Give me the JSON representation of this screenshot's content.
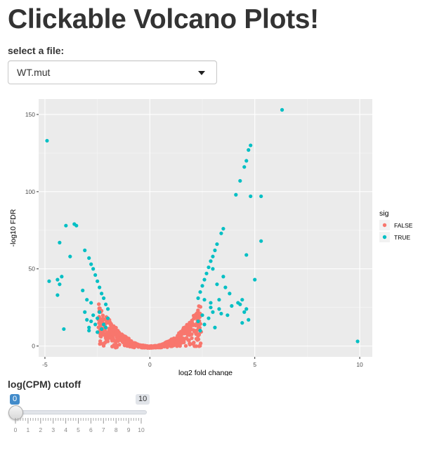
{
  "page": {
    "title": "Clickable Volcano Plots!"
  },
  "file_select": {
    "label": "select a file:",
    "value": "WT.mut"
  },
  "chart_data": {
    "type": "scatter",
    "xlabel": "log2 fold change",
    "ylabel": "-log10 FDR",
    "xlim": [
      -5.3,
      10.6
    ],
    "ylim": [
      -7,
      160
    ],
    "x_ticks": [
      -5,
      0,
      5,
      10
    ],
    "y_ticks": [
      0,
      50,
      100,
      150
    ],
    "x_tick_labels": [
      "-5",
      "0",
      "5",
      "10"
    ],
    "y_tick_labels": [
      "0",
      "50",
      "100",
      "150"
    ],
    "grid": true,
    "legend": {
      "title": "sig",
      "position": "right",
      "entries": [
        {
          "label": "FALSE",
          "color": "#F8766D"
        },
        {
          "label": "TRUE",
          "color": "#00BFC4"
        }
      ]
    },
    "series": [
      {
        "name": "TRUE",
        "color": "#00BFC4",
        "points": [
          [
            6.3,
            153
          ],
          [
            -4.9,
            133
          ],
          [
            4.8,
            130
          ],
          [
            4.7,
            127
          ],
          [
            4.6,
            120
          ],
          [
            4.5,
            116
          ],
          [
            4.3,
            107
          ],
          [
            4.8,
            97
          ],
          [
            5.3,
            97
          ],
          [
            4.1,
            98
          ],
          [
            -3.6,
            79
          ],
          [
            -3.5,
            78
          ],
          [
            -4,
            78
          ],
          [
            3.5,
            76
          ],
          [
            3.4,
            73
          ],
          [
            -4.3,
            67
          ],
          [
            5.3,
            68
          ],
          [
            -3.8,
            58
          ],
          [
            -3.1,
            62
          ],
          [
            4.6,
            59
          ],
          [
            -4.8,
            42
          ],
          [
            -4.4,
            43
          ],
          [
            -4.3,
            40
          ],
          [
            -4.2,
            45
          ],
          [
            -4.4,
            33
          ],
          [
            -4.1,
            11
          ],
          [
            5.0,
            43
          ],
          [
            -3.2,
            36
          ],
          [
            4.2,
            28
          ],
          [
            9.9,
            3
          ],
          [
            -2.9,
            57
          ],
          [
            -2.8,
            53
          ],
          [
            -2.7,
            50
          ],
          [
            -2.6,
            46
          ],
          [
            -2.5,
            42
          ],
          [
            -2.4,
            38
          ],
          [
            -2.3,
            34
          ],
          [
            -2.2,
            31
          ],
          [
            -2.1,
            27
          ],
          [
            -2.0,
            24
          ],
          [
            2.5,
            39
          ],
          [
            2.6,
            43
          ],
          [
            2.7,
            47
          ],
          [
            2.8,
            51
          ],
          [
            2.9,
            55
          ],
          [
            3.0,
            58
          ],
          [
            3.1,
            62
          ],
          [
            3.2,
            66
          ],
          [
            2.4,
            35
          ],
          [
            2.3,
            31
          ],
          [
            3.0,
            50
          ],
          [
            3.2,
            40
          ],
          [
            3.5,
            45
          ],
          [
            3.6,
            38
          ],
          [
            3.8,
            34
          ],
          [
            3.3,
            30
          ],
          [
            2.6,
            30
          ],
          [
            2.9,
            28
          ],
          [
            3.3,
            24
          ],
          [
            3.0,
            22
          ],
          [
            2.8,
            18
          ],
          [
            2.5,
            20
          ],
          [
            2.3,
            16
          ],
          [
            2.6,
            14
          ],
          [
            3.1,
            12
          ],
          [
            2.4,
            10
          ],
          [
            2.9,
            25
          ],
          [
            3.4,
            21
          ],
          [
            4.5,
            22
          ],
          [
            4.4,
            15
          ],
          [
            4.7,
            17
          ],
          [
            4.6,
            24
          ],
          [
            4.3,
            27
          ],
          [
            4.4,
            30
          ],
          [
            3.7,
            20
          ],
          [
            3.9,
            26
          ],
          [
            -2.4,
            22
          ],
          [
            -2.5,
            18
          ],
          [
            -2.7,
            20
          ],
          [
            -2.8,
            16
          ],
          [
            -2.6,
            14
          ],
          [
            -2.9,
            12
          ],
          [
            -2.3,
            11
          ],
          [
            -2.2,
            14
          ],
          [
            -2.5,
            9
          ],
          [
            -3.0,
            30
          ],
          [
            -2.8,
            28
          ],
          [
            -3.1,
            22
          ],
          [
            -3.0,
            17
          ],
          [
            -2.9,
            10
          ],
          [
            -2.1,
            12
          ],
          [
            -2.0,
            18
          ]
        ]
      }
    ]
  },
  "cpm_slider": {
    "label": "log(CPM) cutoff",
    "min": 0,
    "max": 10,
    "value": 0,
    "value_label": "0",
    "max_label": "10",
    "ticks": [
      "0",
      "1",
      "2",
      "3",
      "4",
      "5",
      "6",
      "7",
      "8",
      "9",
      "10"
    ]
  }
}
